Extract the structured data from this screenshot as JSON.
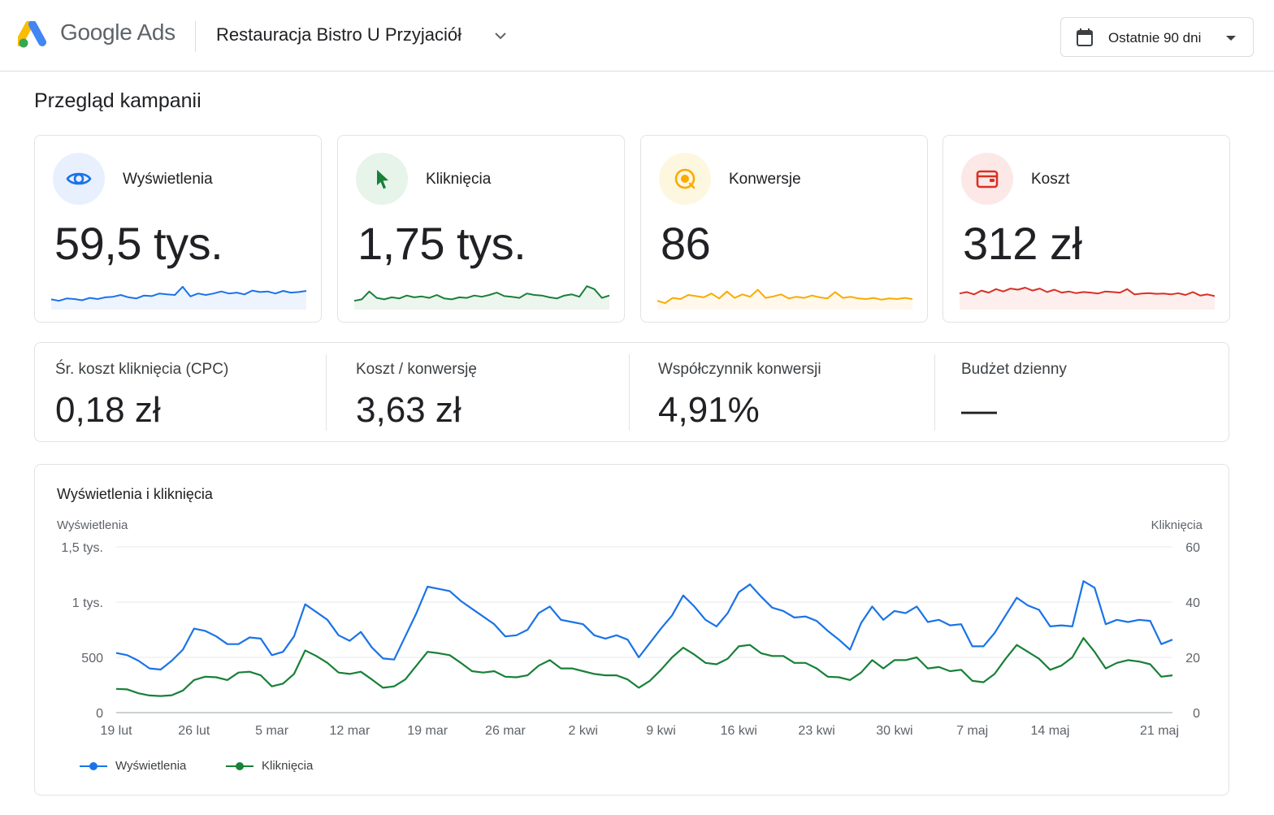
{
  "header": {
    "logo_google": "Google",
    "logo_ads": "Ads",
    "account_name": "Restauracja Bistro U Przyjaciół",
    "date_range": "Ostatnie 90 dni"
  },
  "page_title": "Przegląd kampanii",
  "kpis": [
    {
      "label": "Wyświetlenia",
      "value": "59,5 tys.",
      "color": "#1a73e8",
      "bg": "#e8f0fe",
      "icon": "eye-icon",
      "trend": [
        0.35,
        0.3,
        0.38,
        0.36,
        0.32,
        0.4,
        0.36,
        0.42,
        0.44,
        0.5,
        0.42,
        0.38,
        0.48,
        0.46,
        0.55,
        0.52,
        0.5,
        0.78,
        0.45,
        0.55,
        0.5,
        0.55,
        0.62,
        0.55,
        0.58,
        0.52,
        0.65,
        0.6,
        0.62,
        0.55,
        0.64,
        0.58,
        0.6,
        0.64
      ]
    },
    {
      "label": "Kliknięcia",
      "value": "1,75 tys.",
      "color": "#188038",
      "bg": "#e6f4ea",
      "icon": "cursor-icon",
      "trend": [
        0.3,
        0.35,
        0.62,
        0.4,
        0.35,
        0.42,
        0.38,
        0.48,
        0.42,
        0.45,
        0.4,
        0.5,
        0.38,
        0.35,
        0.42,
        0.4,
        0.48,
        0.44,
        0.5,
        0.58,
        0.46,
        0.44,
        0.4,
        0.55,
        0.5,
        0.48,
        0.42,
        0.38,
        0.48,
        0.52,
        0.44,
        0.8,
        0.7,
        0.4,
        0.48
      ]
    },
    {
      "label": "Konwersje",
      "value": "86",
      "color": "#f9ab00",
      "bg": "#fef7e0",
      "icon": "target-icon",
      "trend": [
        0.3,
        0.22,
        0.4,
        0.36,
        0.5,
        0.46,
        0.42,
        0.55,
        0.38,
        0.62,
        0.4,
        0.52,
        0.44,
        0.68,
        0.4,
        0.45,
        0.52,
        0.38,
        0.44,
        0.4,
        0.48,
        0.42,
        0.38,
        0.6,
        0.4,
        0.44,
        0.38,
        0.36,
        0.4,
        0.34,
        0.38,
        0.36,
        0.4,
        0.36
      ]
    },
    {
      "label": "Koszt",
      "value": "312 zł",
      "color": "#d93025",
      "bg": "#fce8e6",
      "icon": "wallet-icon",
      "trend": [
        0.55,
        0.6,
        0.52,
        0.65,
        0.58,
        0.7,
        0.62,
        0.72,
        0.68,
        0.75,
        0.65,
        0.72,
        0.6,
        0.68,
        0.58,
        0.62,
        0.56,
        0.6,
        0.58,
        0.55,
        0.62,
        0.6,
        0.58,
        0.7,
        0.52,
        0.55,
        0.56,
        0.54,
        0.55,
        0.52,
        0.56,
        0.5,
        0.6,
        0.48,
        0.52,
        0.46
      ]
    }
  ],
  "metrics": [
    {
      "label": "Śr. koszt kliknięcia (CPC)",
      "value": "0,18 zł"
    },
    {
      "label": "Koszt / konwersję",
      "value": "3,63 zł"
    },
    {
      "label": "Współczynnik konwersji",
      "value": "4,91%"
    },
    {
      "label": "Budżet dzienny",
      "value": "—"
    }
  ],
  "chart_data": {
    "type": "line",
    "title": "Wyświetlenia i kliknięcia",
    "ylabel_left": "Wyświetlenia",
    "ylabel_right": "Kliknięcia",
    "ylim_left": [
      0,
      1500
    ],
    "ylim_right": [
      0,
      60
    ],
    "yticks_left": [
      "0",
      "500",
      "1 tys.",
      "1,5 tys."
    ],
    "yticks_right": [
      "0",
      "20",
      "40",
      "60"
    ],
    "xticks": [
      "19 lut",
      "26 lut",
      "5 mar",
      "12 mar",
      "19 mar",
      "26 mar",
      "2 kwi",
      "9 kwi",
      "16 kwi",
      "23 kwi",
      "30 kwi",
      "7 maj",
      "14 maj",
      "21 maj"
    ],
    "grid": true,
    "legend_position": "bottom-left",
    "series": [
      {
        "name": "Wyświetlenia",
        "color": "#1a73e8",
        "values": [
          540,
          520,
          470,
          400,
          390,
          470,
          570,
          760,
          740,
          690,
          620,
          620,
          680,
          670,
          520,
          550,
          690,
          980,
          910,
          840,
          700,
          650,
          730,
          590,
          490,
          480,
          690,
          900,
          1140,
          1120,
          1100,
          1010,
          940,
          870,
          800,
          690,
          700,
          750,
          900,
          960,
          840,
          820,
          800,
          700,
          670,
          700,
          660,
          500,
          630,
          760,
          880,
          1060,
          960,
          840,
          780,
          900,
          1090,
          1160,
          1050,
          950,
          920,
          860,
          870,
          830,
          740,
          660,
          570,
          810,
          960,
          840,
          920,
          900,
          960,
          820,
          840,
          790,
          800,
          600,
          600,
          720,
          880,
          1040,
          970,
          930,
          780,
          790,
          780,
          1190,
          1130,
          800,
          840,
          820,
          840,
          830,
          620,
          660
        ]
      },
      {
        "name": "Kliknięcia",
        "color": "#188038",
        "values": [
          8.6,
          8.4,
          7.0,
          6.2,
          6.0,
          6.3,
          8.0,
          11.8,
          13.0,
          12.8,
          11.8,
          14.5,
          14.8,
          13.5,
          9.5,
          10.5,
          14.0,
          22.5,
          20.5,
          18.0,
          14.5,
          14.0,
          14.8,
          12.0,
          9.0,
          9.5,
          12.0,
          17.0,
          22.0,
          21.5,
          20.8,
          18.0,
          15.0,
          14.5,
          15.0,
          13.0,
          12.8,
          13.5,
          17.0,
          19.0,
          16.0,
          16.0,
          15.0,
          14.0,
          13.5,
          13.5,
          12.0,
          9.0,
          11.5,
          15.5,
          20.0,
          23.5,
          21.0,
          18.0,
          17.5,
          19.5,
          24.0,
          24.5,
          21.5,
          20.5,
          20.5,
          18.0,
          18.0,
          16.0,
          13.0,
          12.8,
          11.8,
          14.5,
          19.0,
          16.0,
          19.0,
          19.0,
          20.0,
          16.0,
          16.5,
          15.0,
          15.5,
          11.5,
          11.0,
          14.0,
          19.5,
          24.5,
          22.0,
          19.5,
          15.5,
          17.0,
          20.0,
          27.0,
          22.0,
          16.0,
          18.0,
          19.0,
          18.5,
          17.5,
          13.0,
          13.5
        ]
      }
    ]
  }
}
